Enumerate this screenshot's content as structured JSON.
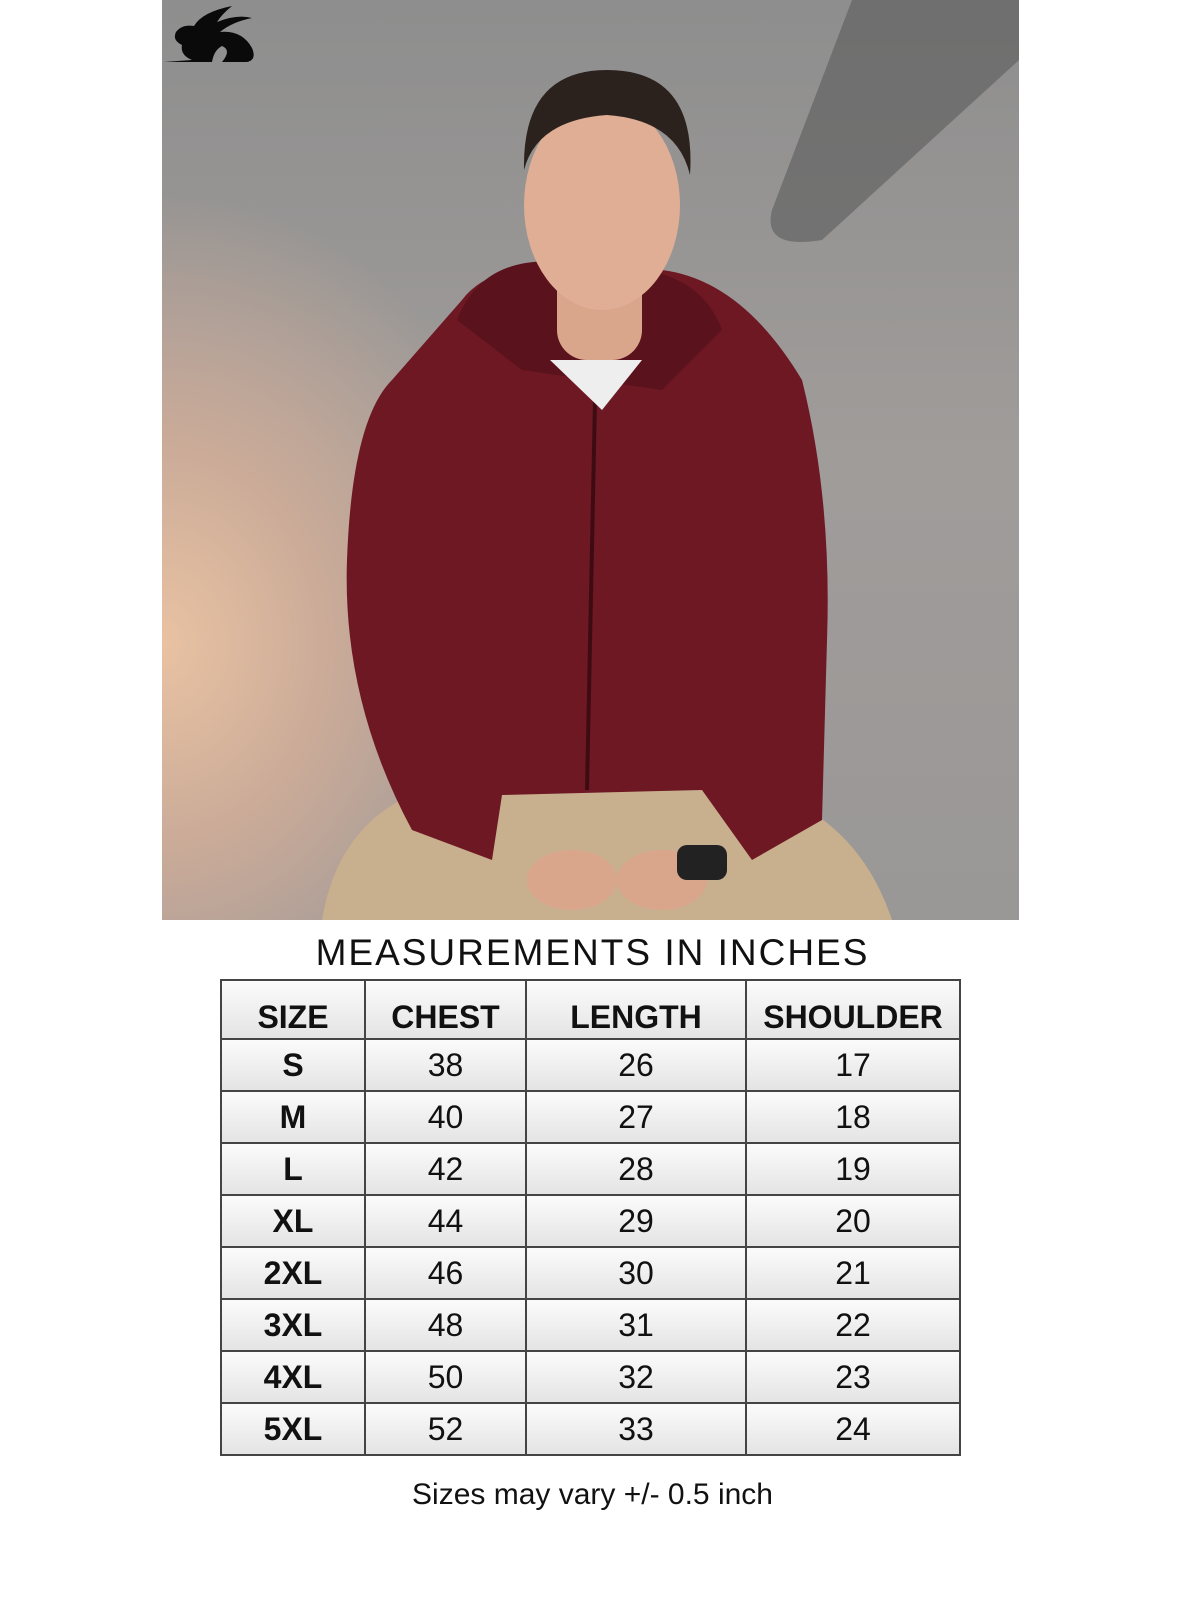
{
  "product_image": {
    "hoodie_color": "#6e1824",
    "logo_icon": "rabbit-logo-icon"
  },
  "title": "MEASUREMENTS IN INCHES",
  "table": {
    "headers": [
      "SIZE",
      "CHEST",
      "LENGTH",
      "SHOULDER"
    ],
    "rows": [
      [
        "S",
        "38",
        "26",
        "17"
      ],
      [
        "M",
        "40",
        "27",
        "18"
      ],
      [
        "L",
        "42",
        "28",
        "19"
      ],
      [
        "XL",
        "44",
        "29",
        "20"
      ],
      [
        "2XL",
        "46",
        "30",
        "21"
      ],
      [
        "3XL",
        "48",
        "31",
        "22"
      ],
      [
        "4XL",
        "50",
        "32",
        "23"
      ],
      [
        "5XL",
        "52",
        "33",
        "24"
      ]
    ]
  },
  "note": "Sizes may vary +/- 0.5 inch"
}
